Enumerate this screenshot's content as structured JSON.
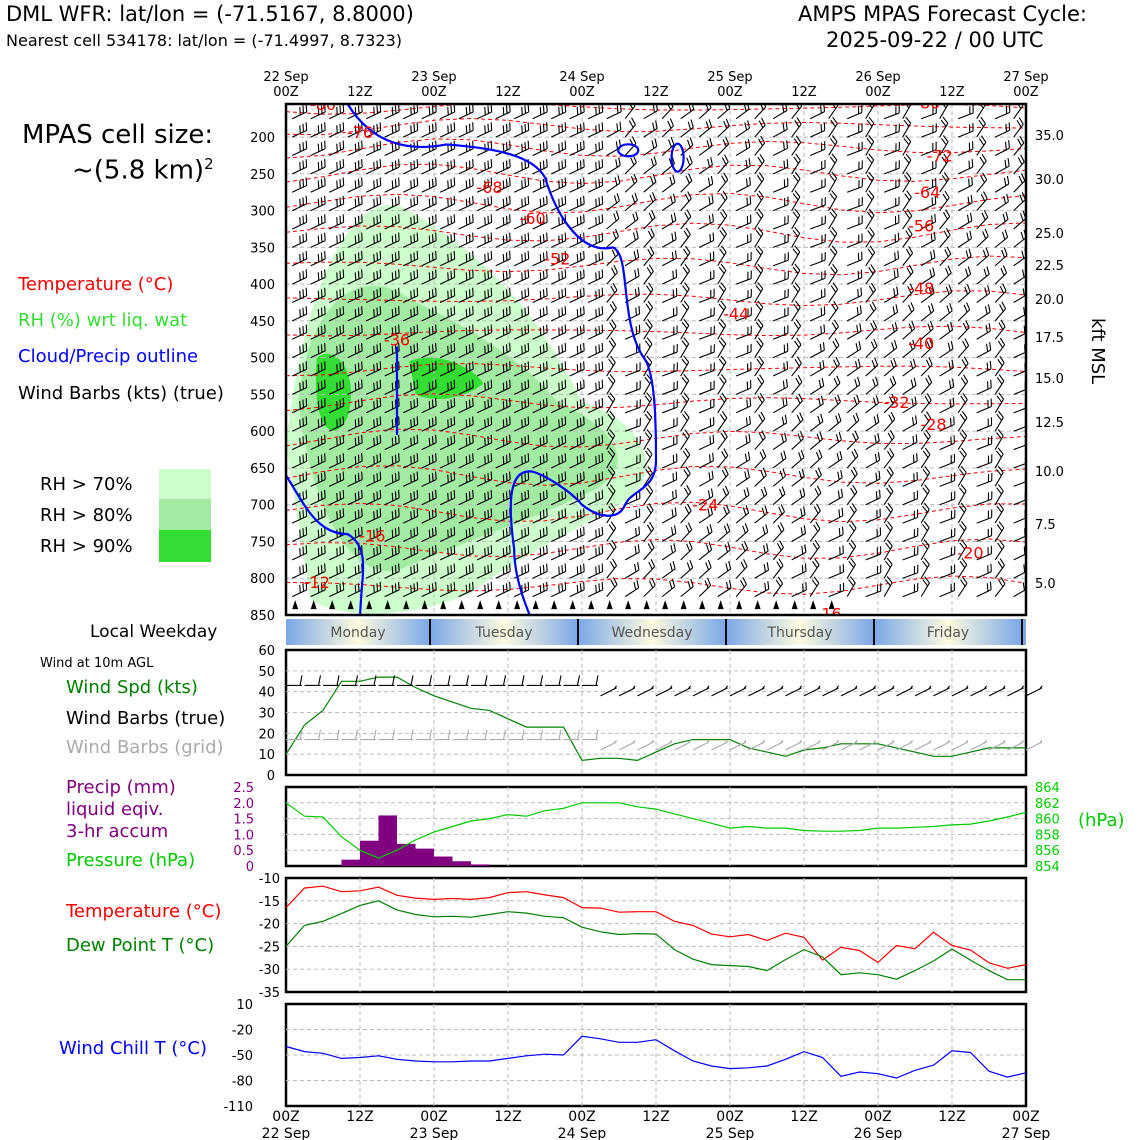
{
  "header": {
    "left_title": "DML WFR: lat/lon = (-71.5167, 8.8000)",
    "left_sub": "Nearest cell 534178: lat/lon = (-71.4997, 8.7323)",
    "right_title_1": "AMPS MPAS Forecast Cycle:",
    "right_title_2": "2025-09-22 / 00 UTC"
  },
  "side": {
    "cell_size_1": "MPAS cell size:",
    "cell_size_2": "~(5.8 km)",
    "cell_size_sup": "2",
    "legend_temp": "Temperature (°C)",
    "legend_rh": "RH (%) wrt liq. wat",
    "legend_cloud": "Cloud/Precip outline",
    "legend_barbs": "Wind Barbs (kts) (true)",
    "rh70": "RH > 70%",
    "rh80": "RH > 80%",
    "rh90": "RH > 90%",
    "local_weekday": "Local Weekday",
    "wind10m": "Wind at 10m AGL",
    "wspd": "Wind Spd (kts)",
    "wbarbs_true": "Wind Barbs (true)",
    "wbarbs_grid": "Wind Barbs (grid)",
    "precip1": "Precip (mm)",
    "precip2": "liquid eqiv.",
    "precip3": "3-hr accum",
    "pressure": "Pressure (hPa)",
    "temp": "Temperature (°C)",
    "dewpoint": "Dew Point T (°C)",
    "windchill": "Wind Chill T (°C)",
    "hpa_unit": "(hPa)",
    "kft": "kft MSL"
  },
  "colors": {
    "temp": "#ff0000",
    "rh_text": "#33dd33",
    "cloud": "#0000ff",
    "rh70": "#ccffcc",
    "rh80": "#a3eba3",
    "rh90": "#33dd33",
    "wspd": "#008000",
    "grid_barb": "#aaaaaa",
    "precip": "#800080",
    "pressure": "#00cc00",
    "dew": "#008000",
    "windchill": "#0000ff"
  },
  "time_axis": {
    "top_day_labels": [
      "22 Sep",
      "23 Sep",
      "24 Sep",
      "25 Sep",
      "26 Sep",
      "27 Sep"
    ],
    "top_hour_labels": [
      "00Z",
      "12Z",
      "00Z",
      "12Z",
      "00Z",
      "12Z",
      "00Z",
      "12Z",
      "00Z",
      "12Z",
      "00Z"
    ],
    "bottom_hour_labels": [
      "00Z",
      "12Z",
      "00Z",
      "12Z",
      "00Z",
      "12Z",
      "00Z",
      "12Z",
      "00Z",
      "12Z",
      "00Z"
    ],
    "bottom_day_labels": [
      "22 Sep",
      "23 Sep",
      "24 Sep",
      "25 Sep",
      "26 Sep",
      "27 Sep"
    ],
    "weekdays": [
      "Monday",
      "Tuesday",
      "Wednesday",
      "Thursday",
      "Friday"
    ]
  },
  "chart_data": [
    {
      "type": "heatmap",
      "name": "time-height cross section",
      "x_range_hours": [
        0,
        120
      ],
      "y_axis_pressure_hpa": [
        200,
        250,
        300,
        350,
        400,
        450,
        500,
        550,
        600,
        650,
        700,
        750,
        800,
        850
      ],
      "y_axis_kft_msl": [
        "35.0",
        "30.0",
        "25.0",
        "22.5",
        "20.0",
        "17.5",
        "15.0",
        "12.5",
        "10.0",
        "7.5",
        "5.0"
      ],
      "temperature_contour_labels": [
        {
          "label": "-80",
          "t": 6,
          "p": 155
        },
        {
          "label": "-76",
          "t": 12,
          "p": 193
        },
        {
          "label": "-80",
          "t": 104,
          "p": 153
        },
        {
          "label": "-72",
          "t": 106,
          "p": 225
        },
        {
          "label": "-68",
          "t": 33,
          "p": 268
        },
        {
          "label": "-64",
          "t": 104,
          "p": 275
        },
        {
          "label": "-60",
          "t": 40,
          "p": 310
        },
        {
          "label": "-56",
          "t": 103,
          "p": 320
        },
        {
          "label": "-52",
          "t": 44,
          "p": 365
        },
        {
          "label": "-48",
          "t": 103,
          "p": 405
        },
        {
          "label": "-44",
          "t": 73,
          "p": 440
        },
        {
          "label": "-40",
          "t": 103,
          "p": 480
        },
        {
          "label": "-36",
          "t": 18,
          "p": 475
        },
        {
          "label": "-32",
          "t": 99,
          "p": 560
        },
        {
          "label": "-28",
          "t": 105,
          "p": 590
        },
        {
          "label": "-24",
          "t": 68,
          "p": 700
        },
        {
          "label": "-20",
          "t": 111,
          "p": 765
        },
        {
          "label": "-16",
          "t": 14,
          "p": 742
        },
        {
          "label": "-16",
          "t": 88,
          "p": 848
        },
        {
          "label": "-12",
          "t": 5,
          "p": 805
        }
      ],
      "rh_thresholds": [
        "RH > 70%",
        "RH > 80%",
        "RH > 90%"
      ],
      "wind_barbs": "speed and direction by time/height"
    },
    {
      "type": "line",
      "name": "wind at 10m AGL",
      "ylim": [
        0,
        60
      ],
      "yticks": [
        0,
        10,
        20,
        30,
        40,
        50,
        60
      ],
      "x": [
        0,
        3,
        6,
        9,
        12,
        15,
        18,
        21,
        24,
        27,
        30,
        33,
        36,
        39,
        42,
        45,
        48,
        51,
        54,
        57,
        60,
        63,
        66,
        69,
        72,
        75,
        78,
        81,
        84,
        87,
        90,
        93,
        96,
        99,
        102,
        105,
        108,
        111,
        114,
        117,
        120
      ],
      "series": [
        {
          "name": "Wind Spd (kts)",
          "values": [
            10,
            24,
            31,
            45,
            45,
            47,
            47,
            42,
            38,
            35,
            32,
            31,
            27,
            23,
            23,
            23,
            7,
            8,
            8,
            7,
            11,
            15,
            17,
            17,
            17,
            13,
            11,
            9,
            12,
            13,
            15,
            15,
            15,
            13,
            11,
            9,
            9,
            11,
            13,
            13,
            13
          ]
        }
      ]
    },
    {
      "type": "bar",
      "name": "precipitation 3-hr accum",
      "ylim": [
        0,
        2.5
      ],
      "yticks": [
        0,
        0.5,
        1.0,
        1.5,
        2.0,
        2.5
      ],
      "x_hours": [
        9,
        12,
        15,
        18,
        21,
        24,
        27,
        30
      ],
      "values": [
        0.2,
        0.8,
        1.6,
        0.7,
        0.55,
        0.3,
        0.15,
        0.05
      ]
    },
    {
      "type": "line",
      "name": "surface pressure",
      "ylim": [
        854,
        864
      ],
      "yticks": [
        854,
        856,
        858,
        860,
        862,
        864
      ],
      "x": [
        0,
        3,
        6,
        9,
        12,
        15,
        18,
        21,
        24,
        27,
        30,
        33,
        36,
        39,
        42,
        45,
        48,
        51,
        54,
        57,
        60,
        63,
        66,
        69,
        72,
        75,
        78,
        81,
        84,
        87,
        90,
        93,
        96,
        99,
        102,
        105,
        108,
        111,
        114,
        117,
        120
      ],
      "values": [
        862.0,
        860.3,
        860.2,
        857.7,
        856.0,
        855.0,
        856.0,
        857.3,
        858.3,
        859.0,
        859.7,
        860.0,
        860.5,
        860.3,
        861.0,
        861.3,
        862.0,
        862.0,
        862.0,
        861.5,
        861.2,
        860.6,
        860.0,
        859.4,
        858.8,
        859.0,
        858.8,
        858.8,
        858.5,
        858.4,
        858.4,
        858.5,
        858.8,
        858.8,
        858.9,
        859.0,
        859.2,
        859.3,
        859.7,
        860.2,
        860.8
      ]
    },
    {
      "type": "line",
      "name": "temperature and dew point",
      "ylim": [
        -35,
        -10
      ],
      "yticks": [
        -35,
        -30,
        -25,
        -20,
        -15,
        -10
      ],
      "x": [
        0,
        3,
        6,
        9,
        12,
        15,
        18,
        21,
        24,
        27,
        30,
        33,
        36,
        39,
        42,
        45,
        48,
        51,
        54,
        57,
        60,
        63,
        66,
        69,
        72,
        75,
        78,
        81,
        84,
        87,
        90,
        93,
        96,
        99,
        102,
        105,
        108,
        111,
        114,
        117,
        120
      ],
      "series": [
        {
          "name": "Temperature (°C)",
          "values": [
            -16.5,
            -12.2,
            -11.8,
            -13.0,
            -12.8,
            -12.0,
            -13.8,
            -14.4,
            -14.7,
            -14.5,
            -14.7,
            -14.3,
            -13.2,
            -13.0,
            -13.7,
            -14.3,
            -16.5,
            -16.6,
            -17.5,
            -17.4,
            -17.4,
            -19.5,
            -20.4,
            -22.3,
            -22.9,
            -22.4,
            -23.7,
            -22.1,
            -23.0,
            -28.0,
            -25.2,
            -25.9,
            -28.5,
            -24.8,
            -25.5,
            -21.9,
            -24.8,
            -25.8,
            -28.6,
            -29.8,
            -29.0
          ]
        },
        {
          "name": "Dew Point T (°C)",
          "values": [
            -25.0,
            -20.4,
            -19.5,
            -17.8,
            -16.0,
            -15.0,
            -17.0,
            -18.0,
            -18.5,
            -18.4,
            -18.6,
            -18.0,
            -17.4,
            -17.7,
            -18.4,
            -18.7,
            -20.8,
            -21.8,
            -22.4,
            -22.2,
            -22.3,
            -25.7,
            -27.8,
            -29.0,
            -29.2,
            -29.4,
            -30.3,
            -27.9,
            -25.7,
            -27.3,
            -31.2,
            -30.8,
            -31.2,
            -32.2,
            -30.3,
            -28.2,
            -25.6,
            -28.0,
            -30.3,
            -32.3,
            -32.3
          ]
        }
      ]
    },
    {
      "type": "line",
      "name": "wind chill",
      "ylim": [
        -110,
        10
      ],
      "yticks": [
        -110,
        -80,
        -50,
        -20,
        10
      ],
      "x": [
        0,
        3,
        6,
        9,
        12,
        15,
        18,
        21,
        24,
        27,
        30,
        33,
        36,
        39,
        42,
        45,
        48,
        51,
        54,
        57,
        60,
        63,
        66,
        69,
        72,
        75,
        78,
        81,
        84,
        87,
        90,
        93,
        96,
        99,
        102,
        105,
        108,
        111,
        114,
        117,
        120
      ],
      "series": [
        {
          "name": "Wind Chill T (°C)",
          "values": [
            -40,
            -46,
            -48,
            -54,
            -53,
            -51,
            -55,
            -57,
            -58,
            -58,
            -57,
            -57,
            -54,
            -51,
            -49,
            -50,
            -28,
            -31,
            -35,
            -35,
            -32,
            -45,
            -57,
            -63,
            -66,
            -65,
            -63,
            -55,
            -46,
            -53,
            -75,
            -70,
            -72,
            -77,
            -68,
            -62,
            -45,
            -47,
            -69,
            -76,
            -71
          ]
        }
      ]
    }
  ]
}
